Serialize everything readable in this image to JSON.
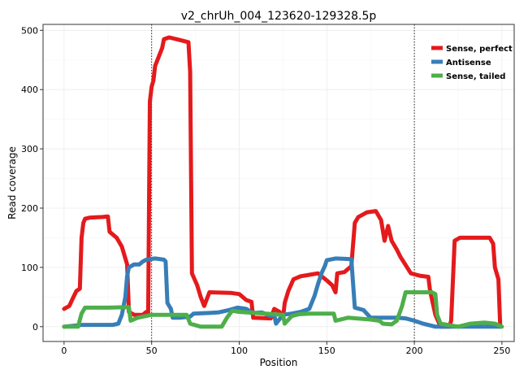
{
  "chart_data": {
    "type": "line",
    "title": "v2_chrUh_004_123620-129328.5p",
    "xlabel": "Position",
    "ylabel": "Read coverage",
    "xlim": [
      -12,
      257
    ],
    "ylim": [
      -25,
      510
    ],
    "xticks": [
      0,
      50,
      100,
      150,
      200,
      250
    ],
    "yticks": [
      0,
      100,
      200,
      300,
      400,
      500
    ],
    "grid": true,
    "legend_position": "top-right",
    "vlines": [
      50,
      200
    ],
    "series": [
      {
        "name": "Sense, perfect",
        "color": "#E41A1C",
        "points": [
          [
            0,
            30
          ],
          [
            3,
            35
          ],
          [
            5,
            48
          ],
          [
            7,
            60
          ],
          [
            9,
            64
          ],
          [
            10,
            150
          ],
          [
            11,
            175
          ],
          [
            12,
            182
          ],
          [
            15,
            184
          ],
          [
            22,
            185
          ],
          [
            25,
            186
          ],
          [
            26,
            160
          ],
          [
            30,
            150
          ],
          [
            33,
            135
          ],
          [
            36,
            105
          ],
          [
            37,
            25
          ],
          [
            40,
            20
          ],
          [
            45,
            20
          ],
          [
            47,
            25
          ],
          [
            48,
            20
          ],
          [
            49,
            380
          ],
          [
            50,
            405
          ],
          [
            51,
            415
          ],
          [
            52,
            440
          ],
          [
            54,
            455
          ],
          [
            56,
            470
          ],
          [
            57,
            485
          ],
          [
            60,
            488
          ],
          [
            67,
            483
          ],
          [
            71,
            480
          ],
          [
            72,
            430
          ],
          [
            73,
            90
          ],
          [
            76,
            70
          ],
          [
            78,
            50
          ],
          [
            80,
            35
          ],
          [
            83,
            58
          ],
          [
            95,
            57
          ],
          [
            100,
            55
          ],
          [
            104,
            45
          ],
          [
            107,
            42
          ],
          [
            108,
            15
          ],
          [
            118,
            14
          ],
          [
            120,
            30
          ],
          [
            123,
            25
          ],
          [
            125,
            15
          ],
          [
            126,
            40
          ],
          [
            128,
            60
          ],
          [
            131,
            80
          ],
          [
            135,
            85
          ],
          [
            145,
            90
          ],
          [
            150,
            78
          ],
          [
            153,
            70
          ],
          [
            155,
            58
          ],
          [
            156,
            90
          ],
          [
            160,
            92
          ],
          [
            164,
            102
          ],
          [
            166,
            175
          ],
          [
            168,
            185
          ],
          [
            173,
            193
          ],
          [
            178,
            195
          ],
          [
            181,
            180
          ],
          [
            183,
            145
          ],
          [
            185,
            170
          ],
          [
            187,
            145
          ],
          [
            190,
            130
          ],
          [
            192,
            118
          ],
          [
            198,
            90
          ],
          [
            203,
            86
          ],
          [
            208,
            84
          ],
          [
            209,
            60
          ],
          [
            212,
            20
          ],
          [
            215,
            0
          ],
          [
            220,
            0
          ],
          [
            221,
            10
          ],
          [
            223,
            145
          ],
          [
            226,
            150
          ],
          [
            243,
            150
          ],
          [
            245,
            140
          ],
          [
            246,
            100
          ],
          [
            248,
            80
          ],
          [
            249,
            0
          ]
        ]
      },
      {
        "name": "Antisense",
        "color": "#377EB8",
        "points": [
          [
            0,
            0
          ],
          [
            10,
            3
          ],
          [
            28,
            3
          ],
          [
            31,
            5
          ],
          [
            33,
            20
          ],
          [
            35,
            50
          ],
          [
            36,
            85
          ],
          [
            37,
            100
          ],
          [
            40,
            105
          ],
          [
            43,
            105
          ],
          [
            45,
            110
          ],
          [
            47,
            113
          ],
          [
            52,
            115
          ],
          [
            57,
            113
          ],
          [
            58,
            110
          ],
          [
            59,
            40
          ],
          [
            61,
            30
          ],
          [
            62,
            15
          ],
          [
            66,
            15
          ],
          [
            72,
            17
          ],
          [
            74,
            22
          ],
          [
            82,
            23
          ],
          [
            88,
            24
          ],
          [
            94,
            28
          ],
          [
            99,
            32
          ],
          [
            104,
            30
          ],
          [
            108,
            23
          ],
          [
            113,
            24
          ],
          [
            118,
            18
          ],
          [
            120,
            20
          ],
          [
            121,
            5
          ],
          [
            125,
            20
          ],
          [
            130,
            22
          ],
          [
            135,
            25
          ],
          [
            140,
            30
          ],
          [
            143,
            52
          ],
          [
            145,
            72
          ],
          [
            147,
            90
          ],
          [
            149,
            103
          ],
          [
            150,
            112
          ],
          [
            155,
            115
          ],
          [
            164,
            114
          ],
          [
            166,
            32
          ],
          [
            171,
            28
          ],
          [
            175,
            15
          ],
          [
            185,
            15
          ],
          [
            190,
            15
          ],
          [
            195,
            14
          ],
          [
            200,
            10
          ],
          [
            205,
            5
          ],
          [
            212,
            0
          ],
          [
            249,
            0
          ]
        ]
      },
      {
        "name": "Sense, tailed",
        "color": "#4DAF4A",
        "points": [
          [
            0,
            0
          ],
          [
            8,
            0
          ],
          [
            10,
            22
          ],
          [
            12,
            32
          ],
          [
            15,
            32
          ],
          [
            25,
            32
          ],
          [
            37,
            33
          ],
          [
            38,
            10
          ],
          [
            42,
            15
          ],
          [
            50,
            20
          ],
          [
            70,
            20
          ],
          [
            72,
            5
          ],
          [
            78,
            0
          ],
          [
            90,
            0
          ],
          [
            93,
            15
          ],
          [
            96,
            27
          ],
          [
            100,
            25
          ],
          [
            115,
            22
          ],
          [
            125,
            20
          ],
          [
            126,
            5
          ],
          [
            130,
            18
          ],
          [
            134,
            21
          ],
          [
            140,
            22
          ],
          [
            145,
            22
          ],
          [
            154,
            22
          ],
          [
            155,
            10
          ],
          [
            162,
            15
          ],
          [
            175,
            12
          ],
          [
            180,
            10
          ],
          [
            182,
            5
          ],
          [
            187,
            4
          ],
          [
            190,
            10
          ],
          [
            193,
            35
          ],
          [
            195,
            58
          ],
          [
            198,
            58
          ],
          [
            210,
            58
          ],
          [
            212,
            55
          ],
          [
            213,
            20
          ],
          [
            215,
            5
          ],
          [
            225,
            0
          ],
          [
            232,
            5
          ],
          [
            240,
            7
          ],
          [
            246,
            5
          ],
          [
            250,
            0
          ]
        ]
      }
    ]
  }
}
